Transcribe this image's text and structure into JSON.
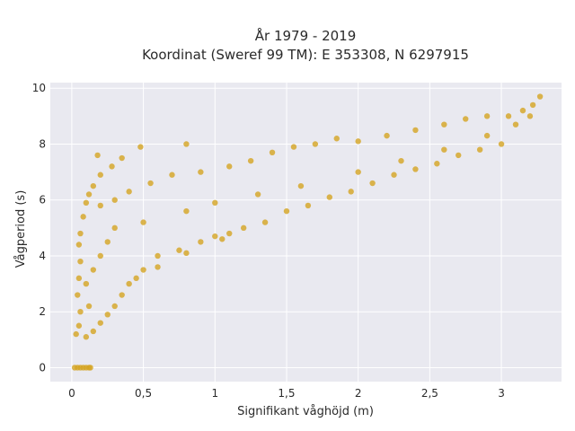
{
  "chart_data": {
    "type": "scatter",
    "title_lines": [
      "År 1979 - 2019",
      "Koordinat (Sweref 99 TM): E 353308, N 6297915"
    ],
    "xlabel": "Signifikant våghöjd (m)",
    "ylabel": "Vågperiod (s)",
    "xlim": [
      -0.15,
      3.42
    ],
    "ylim": [
      -0.5,
      10.2
    ],
    "x_ticks": [
      0,
      0.5,
      1,
      1.5,
      2,
      2.5,
      3
    ],
    "x_tick_labels": [
      "0",
      "0,5",
      "1",
      "1,5",
      "2",
      "2,5",
      "3"
    ],
    "y_ticks": [
      0,
      2,
      4,
      6,
      8,
      10
    ],
    "y_tick_labels": [
      "0",
      "2",
      "4",
      "6",
      "8",
      "10"
    ],
    "grid": true,
    "point_color": "#D4A422",
    "plot_background": "#E9E9F0",
    "series": [
      {
        "points": [
          [
            0.02,
            0
          ],
          [
            0.04,
            0
          ],
          [
            0.06,
            0
          ],
          [
            0.08,
            0
          ],
          [
            0.1,
            0
          ],
          [
            0.12,
            0
          ],
          [
            0.13,
            0
          ],
          [
            0.03,
            1.2
          ],
          [
            0.05,
            1.5
          ],
          [
            0.06,
            2.0
          ],
          [
            0.04,
            2.6
          ],
          [
            0.05,
            3.2
          ],
          [
            0.06,
            3.8
          ],
          [
            0.05,
            4.4
          ],
          [
            0.06,
            4.8
          ],
          [
            0.08,
            5.4
          ],
          [
            0.1,
            5.9
          ],
          [
            0.12,
            6.2
          ],
          [
            0.15,
            6.5
          ],
          [
            0.2,
            6.9
          ],
          [
            0.28,
            7.2
          ],
          [
            0.35,
            7.5
          ],
          [
            0.48,
            7.9
          ],
          [
            0.8,
            8.0
          ],
          [
            0.18,
            7.6
          ],
          [
            0.1,
            1.1
          ],
          [
            0.15,
            1.3
          ],
          [
            0.2,
            1.6
          ],
          [
            0.25,
            1.9
          ],
          [
            0.3,
            2.2
          ],
          [
            0.35,
            2.6
          ],
          [
            0.4,
            3.0
          ],
          [
            0.5,
            3.5
          ],
          [
            0.6,
            4.0
          ],
          [
            0.75,
            4.2
          ],
          [
            0.9,
            4.5
          ],
          [
            1.0,
            4.7
          ],
          [
            1.1,
            4.8
          ],
          [
            1.2,
            5.0
          ],
          [
            1.35,
            5.2
          ],
          [
            1.5,
            5.6
          ],
          [
            1.65,
            5.8
          ],
          [
            1.8,
            6.1
          ],
          [
            1.95,
            6.3
          ],
          [
            2.1,
            6.6
          ],
          [
            2.25,
            6.9
          ],
          [
            2.4,
            7.1
          ],
          [
            2.55,
            7.3
          ],
          [
            2.7,
            7.6
          ],
          [
            2.85,
            7.8
          ],
          [
            3.0,
            8.0
          ],
          [
            0.2,
            5.8
          ],
          [
            0.3,
            6.0
          ],
          [
            0.4,
            6.3
          ],
          [
            0.55,
            6.6
          ],
          [
            0.7,
            6.9
          ],
          [
            0.9,
            7.0
          ],
          [
            1.1,
            7.2
          ],
          [
            1.25,
            7.4
          ],
          [
            1.4,
            7.7
          ],
          [
            1.55,
            7.9
          ],
          [
            1.7,
            8.0
          ],
          [
            1.85,
            8.2
          ],
          [
            2.0,
            8.1
          ],
          [
            2.2,
            8.3
          ],
          [
            2.4,
            8.5
          ],
          [
            2.6,
            8.7
          ],
          [
            2.75,
            8.9
          ],
          [
            2.9,
            9.0
          ],
          [
            3.05,
            9.0
          ],
          [
            3.15,
            9.2
          ],
          [
            3.22,
            9.4
          ],
          [
            3.27,
            9.7
          ],
          [
            0.5,
            5.2
          ],
          [
            0.8,
            5.6
          ],
          [
            1.0,
            5.9
          ],
          [
            1.3,
            6.2
          ],
          [
            1.6,
            6.5
          ],
          [
            2.0,
            7.0
          ],
          [
            2.3,
            7.4
          ],
          [
            2.6,
            7.8
          ],
          [
            2.9,
            8.3
          ],
          [
            3.1,
            8.7
          ],
          [
            3.2,
            9.0
          ],
          [
            0.1,
            3.0
          ],
          [
            0.15,
            3.5
          ],
          [
            0.2,
            4.0
          ],
          [
            0.25,
            4.5
          ],
          [
            0.3,
            5.0
          ],
          [
            0.12,
            2.2
          ],
          [
            0.8,
            4.1
          ],
          [
            1.05,
            4.6
          ],
          [
            0.6,
            3.6
          ],
          [
            0.45,
            3.2
          ]
        ]
      }
    ]
  }
}
